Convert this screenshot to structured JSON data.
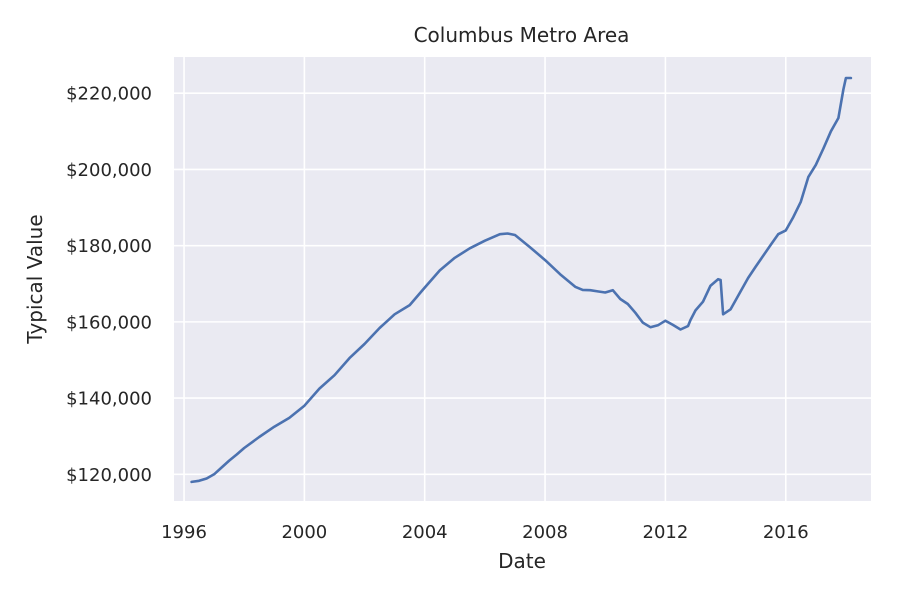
{
  "chart_data": {
    "type": "line",
    "title": "Columbus Metro Area",
    "xlabel": "Date",
    "ylabel": "Typical Value",
    "x_ticks": [
      "1996",
      "2000",
      "2004",
      "2008",
      "2012",
      "2016"
    ],
    "y_ticks": [
      "$120,000",
      "$140,000",
      "$160,000",
      "$180,000",
      "$200,000",
      "$220,000"
    ],
    "xlim": [
      "1995-09",
      "2018-11"
    ],
    "ylim": [
      113000,
      229500
    ],
    "grid": true,
    "style": {
      "background": "#EAEAF2",
      "grid_color": "#FFFFFF",
      "line_color": "#4C72B0"
    },
    "series": [
      {
        "x": [
          "1996-04",
          "1996-07",
          "1996-10",
          "1997-01",
          "1997-04",
          "1997-07",
          "1997-10",
          "1998-01",
          "1998-07",
          "1999-01",
          "1999-07",
          "2000-01",
          "2000-07",
          "2001-01",
          "2001-07",
          "2002-01",
          "2002-07",
          "2003-01",
          "2003-07",
          "2004-01",
          "2004-07",
          "2005-01",
          "2005-07",
          "2006-01",
          "2006-07",
          "2006-10",
          "2007-01",
          "2007-07",
          "2008-01",
          "2008-07",
          "2009-01",
          "2009-04",
          "2009-07",
          "2009-10",
          "2010-01",
          "2010-04",
          "2010-07",
          "2010-10",
          "2011-01",
          "2011-04",
          "2011-07",
          "2011-10",
          "2012-01",
          "2012-04",
          "2012-07",
          "2012-10",
          "2012-11",
          "2013-01",
          "2013-04",
          "2013-07",
          "2013-10",
          "2013-11",
          "2013-12",
          "2014-03",
          "2014-07",
          "2014-10",
          "2015-01",
          "2015-07",
          "2015-10",
          "2016-01",
          "2016-04",
          "2016-07",
          "2016-10",
          "2017-01",
          "2017-04",
          "2017-07",
          "2017-10",
          "2017-12",
          "2018-01",
          "2018-03"
        ],
        "y": [
          118000,
          118300,
          118900,
          120000,
          121800,
          123600,
          125200,
          126900,
          129800,
          132500,
          134800,
          138000,
          142500,
          146000,
          150500,
          154200,
          158400,
          162000,
          164400,
          169000,
          173500,
          176800,
          179300,
          181300,
          183000,
          183200,
          182800,
          179600,
          176200,
          172500,
          169200,
          168400,
          168300,
          168000,
          167700,
          168300,
          166000,
          164700,
          162400,
          159800,
          158600,
          159100,
          160300,
          159200,
          158000,
          158900,
          160500,
          163000,
          165300,
          169500,
          171200,
          171000,
          162000,
          163300,
          168000,
          171500,
          174500,
          180200,
          183000,
          184000,
          187500,
          191500,
          198000,
          201200,
          205500,
          210000,
          213500,
          221000,
          224000,
          224000
        ]
      }
    ]
  }
}
